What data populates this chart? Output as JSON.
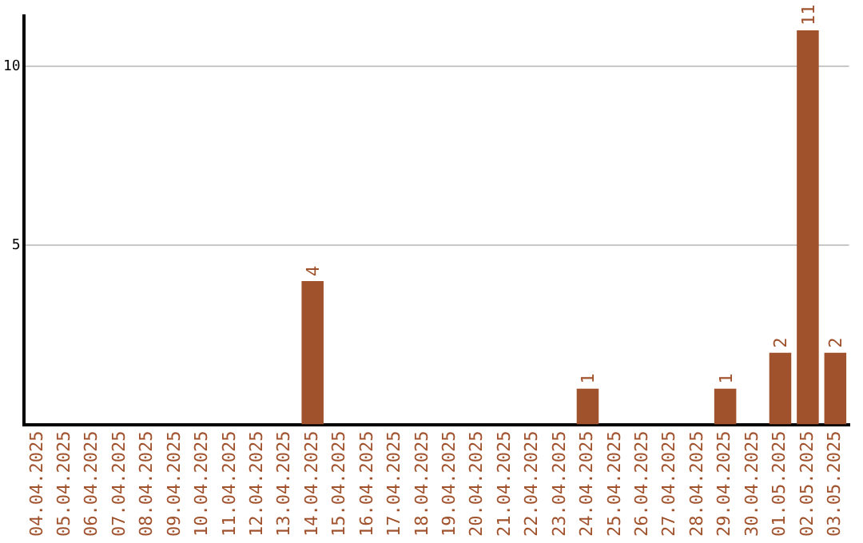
{
  "chart_data": {
    "type": "bar",
    "categories": [
      "04.04.2025",
      "05.04.2025",
      "06.04.2025",
      "07.04.2025",
      "08.04.2025",
      "09.04.2025",
      "10.04.2025",
      "11.04.2025",
      "12.04.2025",
      "13.04.2025",
      "14.04.2025",
      "15.04.2025",
      "16.04.2025",
      "17.04.2025",
      "18.04.2025",
      "19.04.2025",
      "20.04.2025",
      "21.04.2025",
      "22.04.2025",
      "23.04.2025",
      "24.04.2025",
      "25.04.2025",
      "26.04.2025",
      "27.04.2025",
      "28.04.2025",
      "29.04.2025",
      "30.04.2025",
      "01.05.2025",
      "02.05.2025",
      "03.05.2025"
    ],
    "values": [
      0,
      0,
      0,
      0,
      0,
      0,
      0,
      0,
      0,
      0,
      4,
      0,
      0,
      0,
      0,
      0,
      0,
      0,
      0,
      0,
      1,
      0,
      0,
      0,
      0,
      1,
      0,
      2,
      11,
      2
    ],
    "value_labels": [
      null,
      null,
      null,
      null,
      null,
      null,
      null,
      null,
      null,
      null,
      "4",
      null,
      null,
      null,
      null,
      null,
      null,
      null,
      null,
      null,
      "1",
      null,
      null,
      null,
      null,
      "1",
      null,
      "2",
      "11",
      "2"
    ],
    "color": "#a0522d",
    "ylim": [
      0,
      11.4
    ],
    "yticks": [
      5,
      10
    ],
    "grid": "y"
  }
}
